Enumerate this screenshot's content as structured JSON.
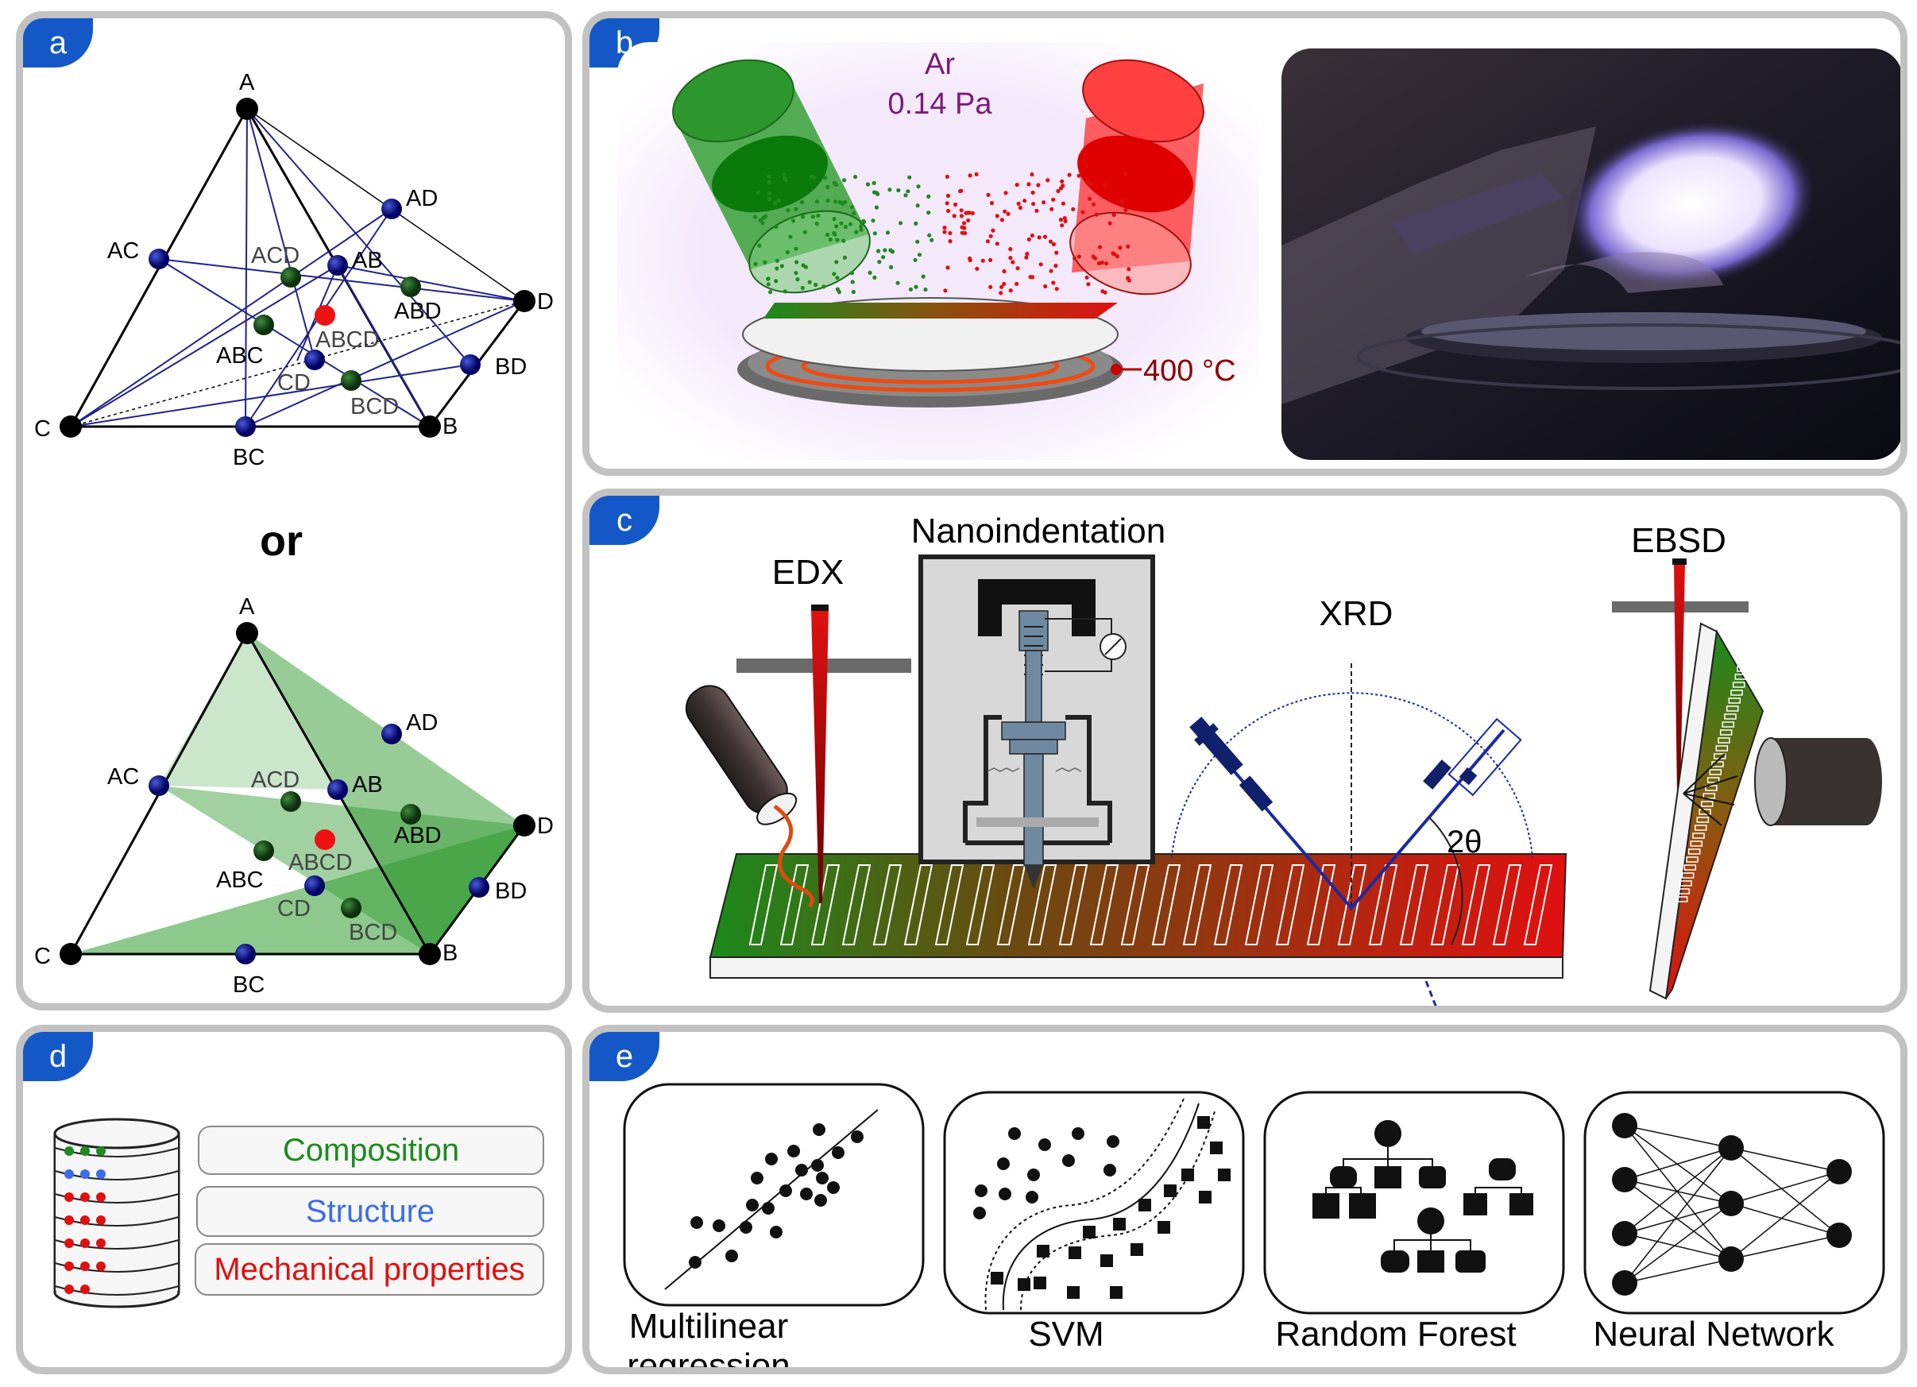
{
  "panels": {
    "a": {
      "label": "a",
      "or_text": "or",
      "vertices": {
        "A": "A",
        "B": "B",
        "C": "C",
        "D": "D"
      },
      "points": {
        "AB": "AB",
        "AC": "AC",
        "AD": "AD",
        "BC": "BC",
        "BD": "BD",
        "CD": "CD",
        "ABC": "ABC",
        "ABD": "ABD",
        "ACD": "ACD",
        "BCD": "BCD",
        "ABCD": "ABCD"
      }
    },
    "b": {
      "label": "b",
      "gas": "Ar",
      "pressure": "0.14 Pa",
      "temperature": "400 °C"
    },
    "c": {
      "label": "c",
      "edx": "EDX",
      "nanoindentation": "Nanoindentation",
      "xrd": "XRD",
      "ebsd": "EBSD",
      "angle": "2θ"
    },
    "d": {
      "label": "d",
      "composition": "Composition",
      "structure": "Structure",
      "mechanical": "Mechanical properties"
    },
    "e": {
      "label": "e",
      "models": [
        "Multilinear regression",
        "SVM",
        "Random Forest",
        "Neural Network"
      ]
    }
  },
  "colors": {
    "tag": "#1458c8",
    "green": "#1e8a1e",
    "red": "#e01010",
    "blue": "#3a6ee8",
    "purple": "#7a1a7a",
    "dark_red": "#8b0000",
    "vertex_blue": "#0a0a80",
    "vertex_green": "#1a4d1a"
  }
}
